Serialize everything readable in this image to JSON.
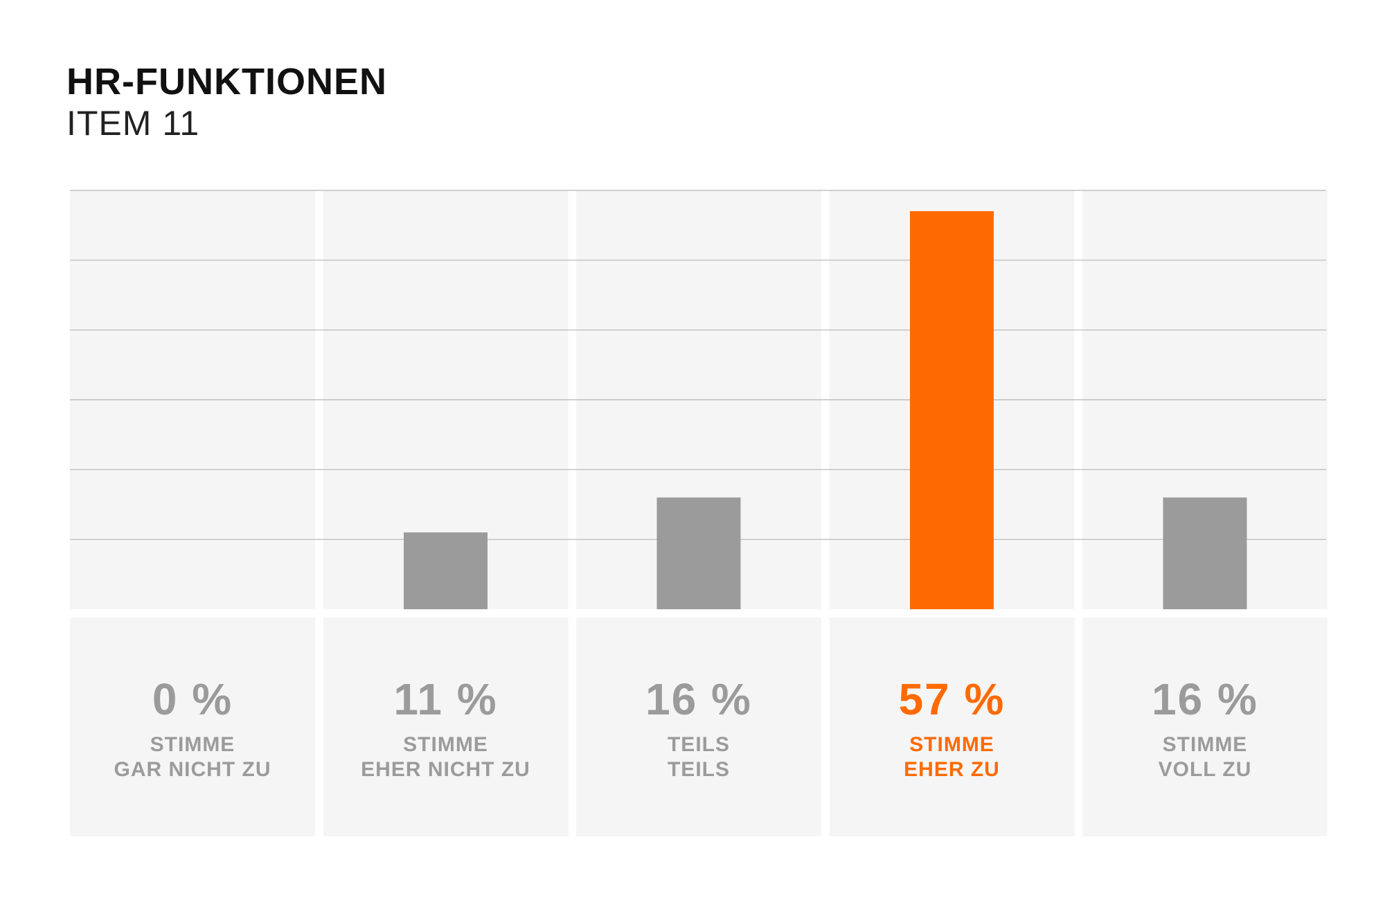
{
  "chart_data": {
    "type": "bar",
    "title": "HR-FUNKTIONEN",
    "subtitle": "ITEM 11",
    "categories": [
      "STIMME\nGAR NICHT ZU",
      "STIMME\nEHER NICHT ZU",
      "TEILS\nTEILS",
      "STIMME\nEHER ZU",
      "STIMME\nVOLL ZU"
    ],
    "values": [
      0,
      11,
      16,
      57,
      16
    ],
    "value_labels": [
      "0 %",
      "11 %",
      "16 %",
      "57 %",
      "16 %"
    ],
    "highlight_index": 3,
    "ylim": [
      0,
      60
    ],
    "grid": true,
    "colors": {
      "bar": "#9b9b9b",
      "highlight": "#ff6a00",
      "label": "#9b9b9b",
      "panel": "#f5f5f5",
      "gridline": "#b4b4b4"
    }
  }
}
